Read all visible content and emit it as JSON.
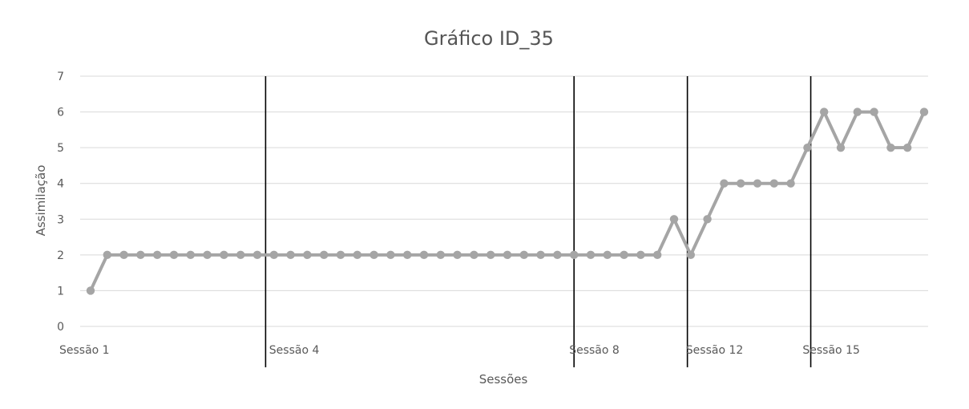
{
  "chart_data": {
    "type": "line",
    "title": "Gráfico ID_35",
    "xlabel": "Sessões",
    "ylabel": "Assimilação",
    "ylim": [
      0,
      7
    ],
    "yticks": [
      0,
      1,
      2,
      3,
      4,
      5,
      6,
      7
    ],
    "grid": true,
    "series_color": "#a5a5a5",
    "session_labels": [
      {
        "label": "Sessão 1",
        "index": 0
      },
      {
        "label": "Sessão 4",
        "index": 11
      },
      {
        "label": "Sessão 8",
        "index": 29
      },
      {
        "label": "Sessão 12",
        "index": 36
      },
      {
        "label": "Sessão 15",
        "index": 43
      }
    ],
    "phase_changes_after_index": [
      10.5,
      29,
      35.8,
      43.2
    ],
    "values": [
      1,
      2,
      2,
      2,
      2,
      2,
      2,
      2,
      2,
      2,
      2,
      2,
      2,
      2,
      2,
      2,
      2,
      2,
      2,
      2,
      2,
      2,
      2,
      2,
      2,
      2,
      2,
      2,
      2,
      2,
      2,
      2,
      2,
      2,
      2,
      3,
      2,
      3,
      4,
      4,
      4,
      4,
      4,
      5,
      6,
      5,
      6,
      6,
      5,
      5,
      6
    ]
  }
}
